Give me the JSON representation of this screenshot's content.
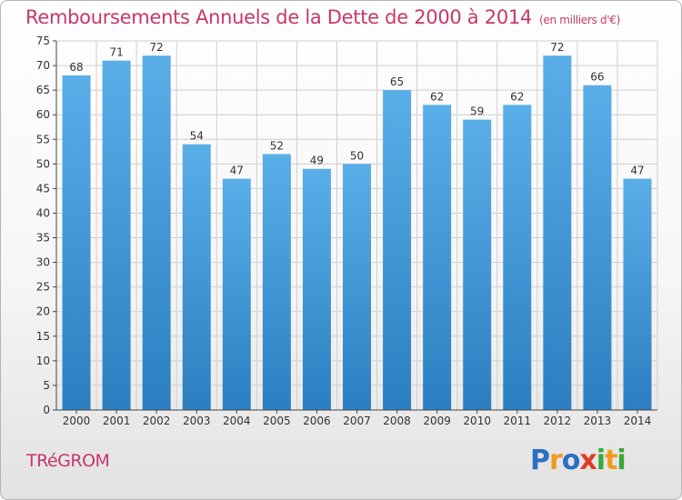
{
  "header": {
    "title": "Remboursements Annuels de la Dette de 2000 à 2014",
    "subtitle": "(en milliers d'€)"
  },
  "footer": {
    "commune": "TRéGROM",
    "logo_text": "Proxiti",
    "logo_letters": [
      {
        "char": "P",
        "color": "#2a6fc4"
      },
      {
        "char": "r",
        "color": "#f29a1f"
      },
      {
        "char": "o",
        "color": "#2a6fc4"
      },
      {
        "char": "x",
        "color": "#e23c25"
      },
      {
        "char": "i",
        "color": "#39a83a"
      },
      {
        "char": "t",
        "color": "#f29a1f"
      },
      {
        "char": "i",
        "color": "#39a83a"
      }
    ]
  },
  "colors": {
    "bar_top": "#5aaee8",
    "bar_bottom": "#2b7fc1",
    "accent": "#c8366b",
    "grid": "#cfcfcf",
    "axis": "#444444"
  },
  "chart_data": {
    "type": "bar",
    "title": "Remboursements Annuels de la Dette de 2000 à 2014",
    "subtitle": "(en milliers d'€)",
    "categories": [
      "2000",
      "2001",
      "2002",
      "2003",
      "2004",
      "2005",
      "2006",
      "2007",
      "2008",
      "2009",
      "2010",
      "2011",
      "2012",
      "2013",
      "2014"
    ],
    "values": [
      68,
      71,
      72,
      54,
      47,
      52,
      49,
      50,
      65,
      62,
      59,
      62,
      72,
      66,
      47
    ],
    "xlabel": "",
    "ylabel": "",
    "ylim": [
      0,
      75
    ],
    "yticks": [
      0,
      5,
      10,
      15,
      20,
      25,
      30,
      35,
      40,
      45,
      50,
      55,
      60,
      65,
      70,
      75
    ],
    "grid": true,
    "data_labels": true
  }
}
